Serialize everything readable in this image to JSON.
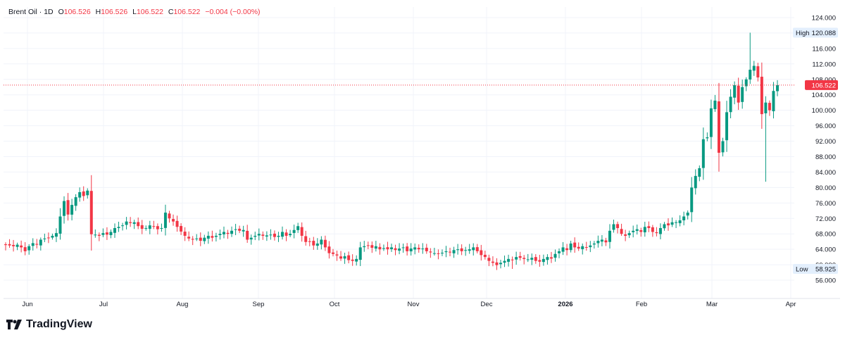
{
  "legend": {
    "symbol": "Brent Oil",
    "sep": "·",
    "interval": "1D",
    "o_label": "O",
    "open": "106.526",
    "h_label": "H",
    "high": "106.526",
    "l_label": "L",
    "low": "106.522",
    "c_label": "C",
    "close": "106.522",
    "change": "−0.004 (−0.00%)"
  },
  "brand": {
    "name": "TradingView",
    "icon": "tradingview-logo-icon"
  },
  "colors": {
    "up": "#089981",
    "down": "#f23645",
    "grid": "#f0f3fa",
    "text": "#131722",
    "axis_text": "#131722",
    "label_bg": "#e3effd"
  },
  "chart_data": {
    "type": "candlestick",
    "symbol": "Brent Oil",
    "interval": "1D",
    "grid": true,
    "price_scale": "right",
    "ylim": [
      52,
      126
    ],
    "y_ticks": [
      "124.000",
      "120.000",
      "116.000",
      "112.000",
      "108.000",
      "104.000",
      "100.000",
      "96.000",
      "92.000",
      "88.000",
      "84.000",
      "80.000",
      "76.000",
      "72.000",
      "68.000",
      "64.000",
      "60.000",
      "56.000"
    ],
    "x_labels": [
      "Jun",
      "Jul",
      "Aug",
      "Sep",
      "Oct",
      "Nov",
      "Dec",
      "2026",
      "Feb",
      "Mar",
      "Apr"
    ],
    "high_label": {
      "text": "High",
      "value": "120.088"
    },
    "low_label": {
      "text": "Low",
      "value": "58.925"
    },
    "last_price": {
      "value": "106.522"
    },
    "closes": [
      65.1,
      65.0,
      64.8,
      65.2,
      64.5,
      63.5,
      64.8,
      65.6,
      65.2,
      66.5,
      66.8,
      67.0,
      67.5,
      68.2,
      72.5,
      76.5,
      73.0,
      75.5,
      77.5,
      78.8,
      77.8,
      79.2,
      67.9,
      67.8,
      67.5,
      68.2,
      67.8,
      68.5,
      69.5,
      69.8,
      70.2,
      71.2,
      70.8,
      71.0,
      70.0,
      69.3,
      69.5,
      70.2,
      69.9,
      69.2,
      69.5,
      73.5,
      72.0,
      71.2,
      69.8,
      68.6,
      67.5,
      66.8,
      66.5,
      66.8,
      66.2,
      67.0,
      67.5,
      67.0,
      67.5,
      68.0,
      68.5,
      68.0,
      68.8,
      69.2,
      68.8,
      69.0,
      66.5,
      67.0,
      67.5,
      68.0,
      67.5,
      67.6,
      67.8,
      67.2,
      67.5,
      68.5,
      67.5,
      68.0,
      69.0,
      70.0,
      67.5,
      65.9,
      66.0,
      65.0,
      65.5,
      66.5,
      64.5,
      63.0,
      62.8,
      62.4,
      61.6,
      62.2,
      61.2,
      61.0,
      61.5,
      64.5,
      64.8,
      65.0,
      64.4,
      64.8,
      64.0,
      64.3,
      64.0,
      64.5,
      63.8,
      64.2,
      64.5,
      63.5,
      64.2,
      64.5,
      64.0,
      64.2,
      63.5,
      63.2,
      63.0,
      62.8,
      63.1,
      63.5,
      63.2,
      63.8,
      64.0,
      63.5,
      63.8,
      64.0,
      64.5,
      63.5,
      62.5,
      62.0,
      61.0,
      60.5,
      59.9,
      60.5,
      61.0,
      61.5,
      61.2,
      62.0,
      61.8,
      61.5,
      61.4,
      61.8,
      61.0,
      60.8,
      61.5,
      62.0,
      61.6,
      62.8,
      63.5,
      64.5,
      63.8,
      65.5,
      64.5,
      64.2,
      64.8,
      64.5,
      65.0,
      65.5,
      66.2,
      66.5,
      65.8,
      68.8,
      70.5,
      69.5,
      68.0,
      67.5,
      68.2,
      68.8,
      69.2,
      68.5,
      69.8,
      69.5,
      68.5,
      68.2,
      69.5,
      70.5,
      70.2,
      71.0,
      71.0,
      71.5,
      72.5,
      73.5,
      80.0,
      83.0,
      85.0,
      92.5,
      93.0,
      100.5,
      102.5,
      89.0,
      92.0,
      99.5,
      103.5,
      106.5,
      102.0,
      106.0,
      108.0,
      110.5,
      111.5,
      108.5,
      99.0,
      102.0,
      100.0,
      105.0,
      106.5
    ]
  }
}
